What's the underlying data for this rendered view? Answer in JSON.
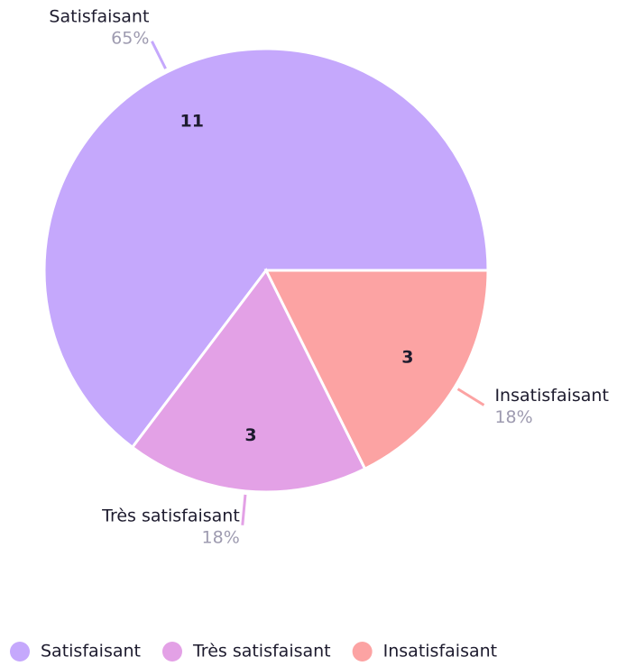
{
  "chart_data": {
    "type": "pie",
    "categories": [
      "Satisfaisant",
      "Très satisfaisant",
      "Insatisfaisant"
    ],
    "values": [
      11,
      3,
      3
    ],
    "percent_labels": [
      "65%",
      "18%",
      "18%"
    ],
    "colors": [
      "#c5a8fc",
      "#e3a1e6",
      "#fca3a3"
    ],
    "legend": "bottom"
  }
}
